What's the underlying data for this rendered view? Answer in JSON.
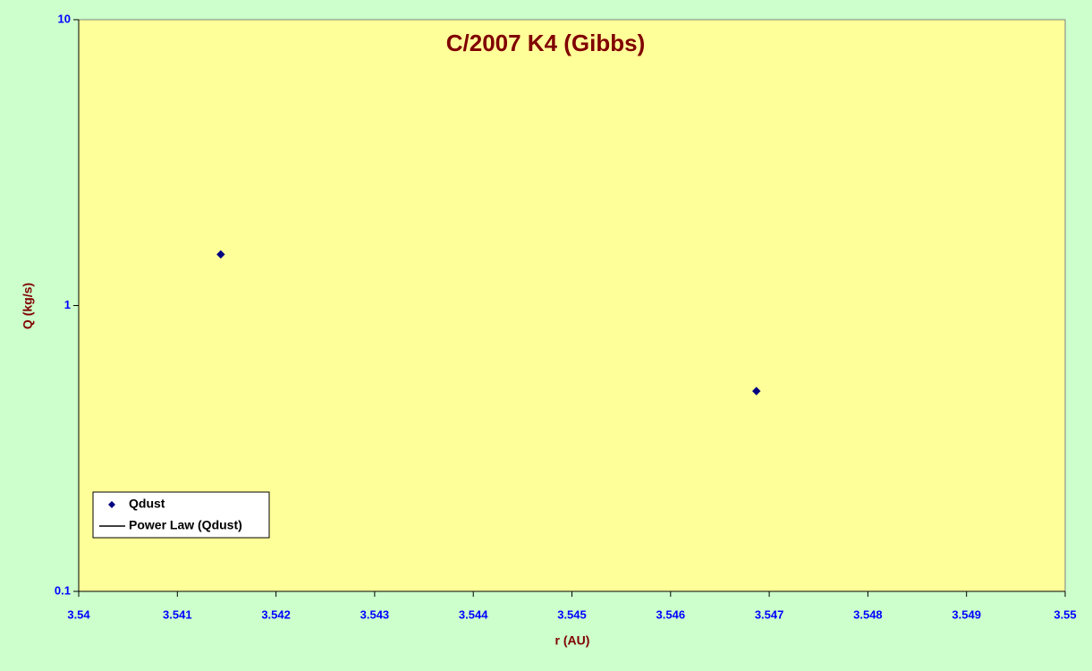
{
  "chart_data": {
    "type": "scatter",
    "title": "C/2007 K4 (Gibbs)",
    "x_label": "r (AU)",
    "y_label": "Q (kg/s)",
    "series": [
      {
        "name": "Qdust",
        "color": "#000080",
        "x": [
          3.54144,
          3.54687
        ],
        "values": [
          1.51,
          0.502
        ]
      }
    ],
    "trendline": {
      "name": "Power Law (Qdust)",
      "color": "#000000"
    },
    "xlim": [
      3.54,
      3.55
    ],
    "xticks": [
      3.54,
      3.541,
      3.542,
      3.543,
      3.544,
      3.545,
      3.546,
      3.547,
      3.548,
      3.549,
      3.55
    ],
    "ylim": [
      0.1,
      10
    ],
    "yticks": [
      0.1,
      1,
      10
    ],
    "y_log": true,
    "legend": "lower left",
    "plot_color": "#ffff99"
  }
}
